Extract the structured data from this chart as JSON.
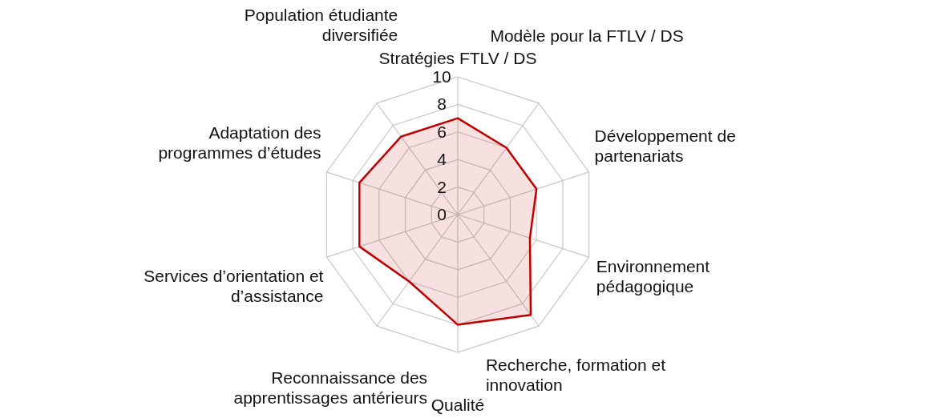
{
  "chart_data": {
    "type": "radar",
    "categories": [
      "Stratégies FTLV / DS",
      "Modèle pour la FTLV / DS",
      "Développement de partenariats",
      "Environnement pédagogique",
      "Recherche, formation et innovation",
      "Qualité",
      "Reconnaissance des apprentissages antérieurs",
      "Services d’orientation et d’assistance",
      "Adaptation des programmes d’études",
      "Population étudiante diversifiée"
    ],
    "series": [
      {
        "color": "#c00000",
        "values": [
          7,
          6,
          6,
          5.5,
          9,
          8,
          6,
          7.5,
          7.5,
          7
        ]
      }
    ],
    "ylim": [
      0,
      10
    ],
    "yticks": [
      0,
      2,
      4,
      6,
      8,
      10
    ],
    "grid": true
  }
}
